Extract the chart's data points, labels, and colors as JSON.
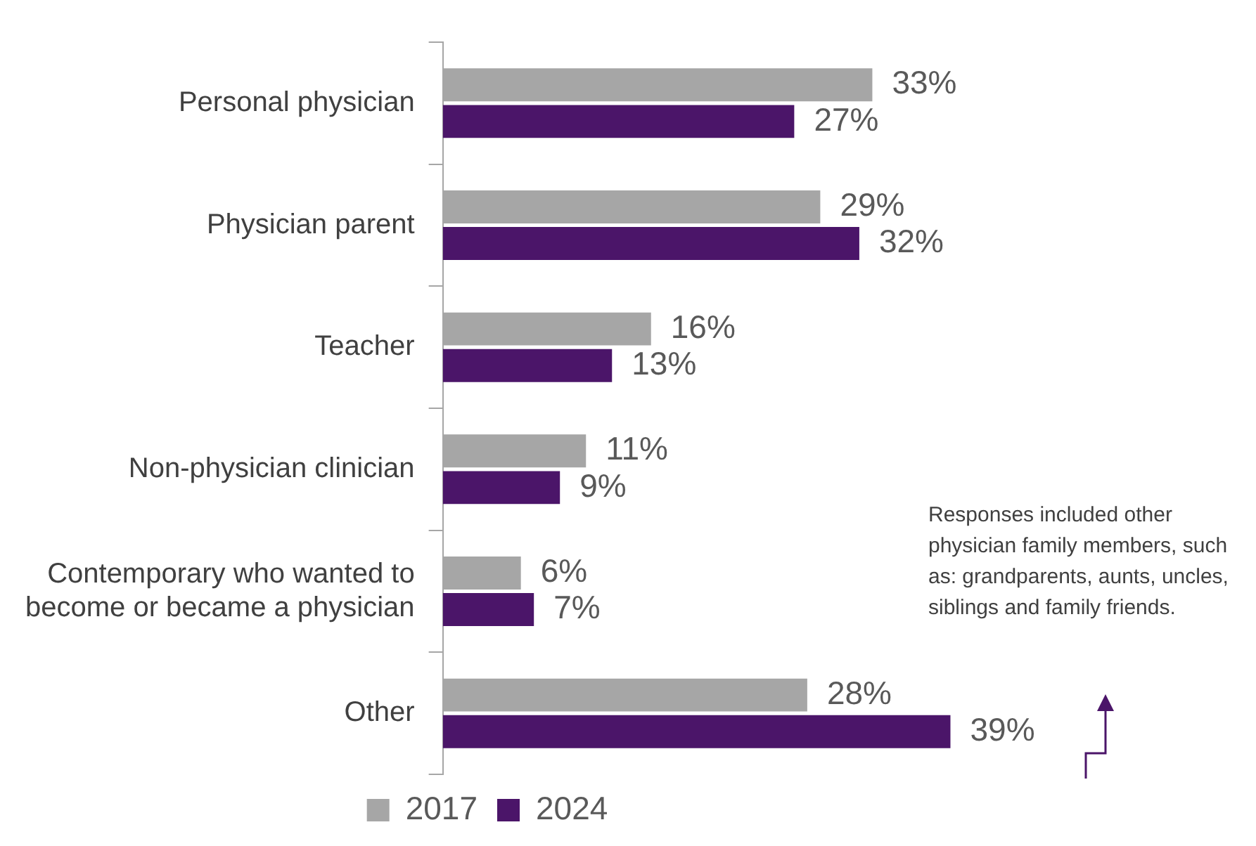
{
  "chart_data": {
    "type": "bar",
    "orientation": "horizontal",
    "categories": [
      "Personal physician",
      "Physician parent",
      "Teacher",
      "Non-physician clinician",
      "Contemporary who wanted to become or became a physician",
      "Other"
    ],
    "series": [
      {
        "name": "2017",
        "color": "#a6a6a6",
        "values": [
          33,
          29,
          16,
          11,
          6,
          28
        ],
        "value_labels": [
          "33%",
          "29%",
          "16%",
          "11%",
          "6%",
          "28%"
        ]
      },
      {
        "name": "2024",
        "color": "#4b1569",
        "values": [
          27,
          32,
          13,
          9,
          7,
          39
        ],
        "value_labels": [
          "27%",
          "32%",
          "13%",
          "9%",
          "7%",
          "39%"
        ]
      }
    ],
    "legend": "bottom",
    "tick_labels": "y",
    "annotations": [
      "Responses included other physician family members, such as: grandparents, aunts, uncles, siblings and family friends."
    ]
  }
}
